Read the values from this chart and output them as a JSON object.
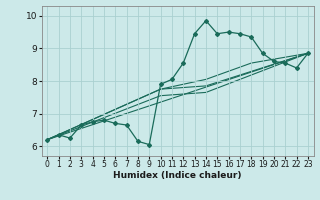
{
  "title": "",
  "xlabel": "Humidex (Indice chaleur)",
  "ylabel": "",
  "xlim": [
    -0.5,
    23.5
  ],
  "ylim": [
    5.7,
    10.3
  ],
  "xticks": [
    0,
    1,
    2,
    3,
    4,
    5,
    6,
    7,
    8,
    9,
    10,
    11,
    12,
    13,
    14,
    15,
    16,
    17,
    18,
    19,
    20,
    21,
    22,
    23
  ],
  "yticks": [
    6,
    7,
    8,
    9,
    10
  ],
  "bg_color": "#cce9e9",
  "grid_color": "#aad0d0",
  "line_color": "#1a6b5a",
  "main_series_x": [
    0,
    1,
    2,
    3,
    4,
    5,
    6,
    7,
    8,
    9,
    10,
    11,
    12,
    13,
    14,
    15,
    16,
    17,
    18,
    19,
    20,
    21,
    22,
    23
  ],
  "main_series_y": [
    6.2,
    6.35,
    6.25,
    6.65,
    6.75,
    6.8,
    6.7,
    6.65,
    6.15,
    6.05,
    7.9,
    8.05,
    8.55,
    9.45,
    9.85,
    9.45,
    9.5,
    9.45,
    9.35,
    8.85,
    8.6,
    8.55,
    8.4,
    8.85
  ],
  "trend1_x": [
    0,
    23
  ],
  "trend1_y": [
    6.2,
    8.85
  ],
  "trend2_x": [
    0,
    10,
    14,
    23
  ],
  "trend2_y": [
    6.2,
    7.55,
    7.65,
    8.85
  ],
  "trend3_x": [
    0,
    10,
    14,
    23
  ],
  "trend3_y": [
    6.2,
    7.75,
    7.85,
    8.85
  ],
  "trend4_x": [
    0,
    10,
    14,
    18,
    23
  ],
  "trend4_y": [
    6.2,
    7.75,
    8.05,
    8.55,
    8.85
  ]
}
